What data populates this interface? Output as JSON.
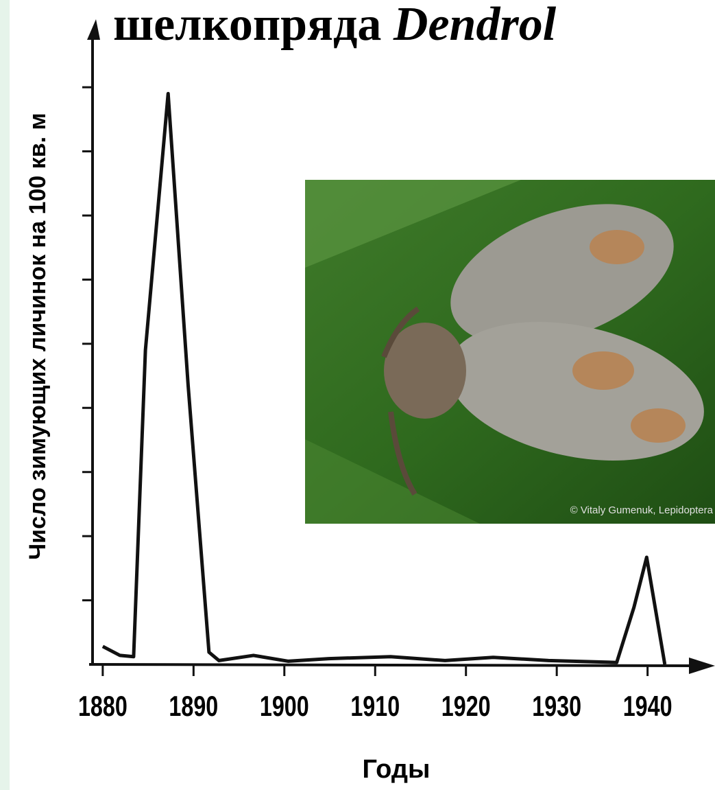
{
  "chart_data": {
    "type": "line",
    "title": "шелкопряда",
    "title_italic": "Dendrol",
    "ylabel": "Число зимующих личинок на 100 кв. м",
    "xlabel": "Годы",
    "photo_caption": "© Vitaly Gumenuk, Lepidoptera",
    "x": [
      1880.0,
      1881.9,
      1883.4,
      1884.7,
      1887.2,
      1889.4,
      1891.7,
      1892.8,
      1896.6,
      1900.4,
      1904.9,
      1911.7,
      1917.7,
      1923.0,
      1929.1,
      1936.6,
      1938.5,
      1939.9,
      1941.9
    ],
    "series": [
      {
        "color": "#111111",
        "values": [
          0.28,
          0.14,
          0.12,
          4.9,
          8.9,
          4.36,
          0.19,
          0.06,
          0.14,
          0.05,
          0.09,
          0.12,
          0.06,
          0.11,
          0.06,
          0.03,
          0.89,
          1.67,
          0
        ]
      }
    ],
    "xlim": [
      1878.5,
      1947.2
    ],
    "xticks": [
      1880,
      1890,
      1900,
      1910,
      1920,
      1930,
      1940
    ],
    "ylim": [
      0,
      9.6
    ],
    "yticks": [
      1,
      2,
      3,
      4,
      5,
      6,
      7,
      8,
      9
    ],
    "grid": false
  }
}
